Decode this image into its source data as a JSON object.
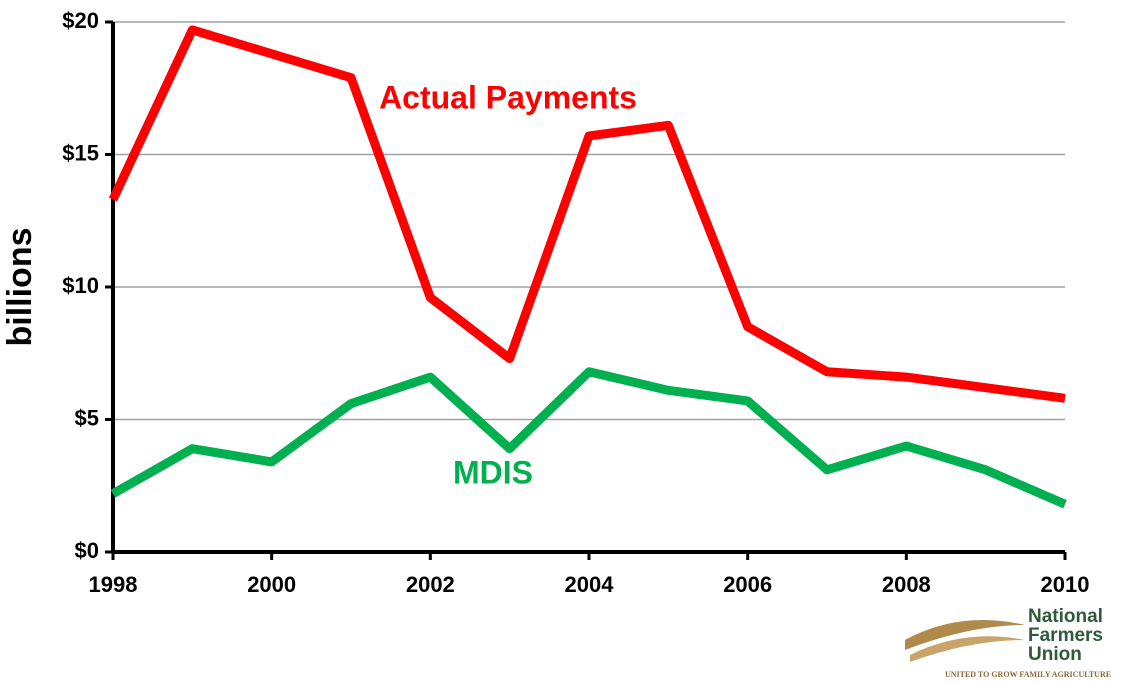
{
  "chart_data": {
    "type": "line",
    "ylabel": "billions",
    "x": [
      1998,
      1999,
      2000,
      2001,
      2002,
      2003,
      2004,
      2005,
      2006,
      2007,
      2008,
      2009,
      2010
    ],
    "series": [
      {
        "name": "Actual Payments",
        "color": "#ff0000",
        "values": [
          13.3,
          19.7,
          18.8,
          17.9,
          9.6,
          7.3,
          15.7,
          16.1,
          8.5,
          6.8,
          6.6,
          6.2,
          5.8
        ]
      },
      {
        "name": "MDIS",
        "color": "#00b050",
        "values": [
          2.2,
          3.9,
          3.4,
          5.6,
          6.6,
          3.9,
          6.8,
          6.1,
          5.7,
          3.1,
          4.0,
          3.1,
          1.8
        ]
      }
    ],
    "xlim": [
      1998,
      2010
    ],
    "xticks": [
      1998,
      2000,
      2002,
      2004,
      2006,
      2008,
      2010
    ],
    "ylim": [
      0,
      20
    ],
    "yticks": [
      {
        "value": 0,
        "label": "$0"
      },
      {
        "value": 5,
        "label": "$5"
      },
      {
        "value": 10,
        "label": "$10"
      },
      {
        "value": 15,
        "label": "$15"
      },
      {
        "value": 20,
        "label": "$20"
      }
    ],
    "grid": true
  },
  "logo": {
    "lines": [
      "National",
      "Farmers",
      "Union"
    ],
    "tagline": "United to Grow Family Agriculture"
  }
}
